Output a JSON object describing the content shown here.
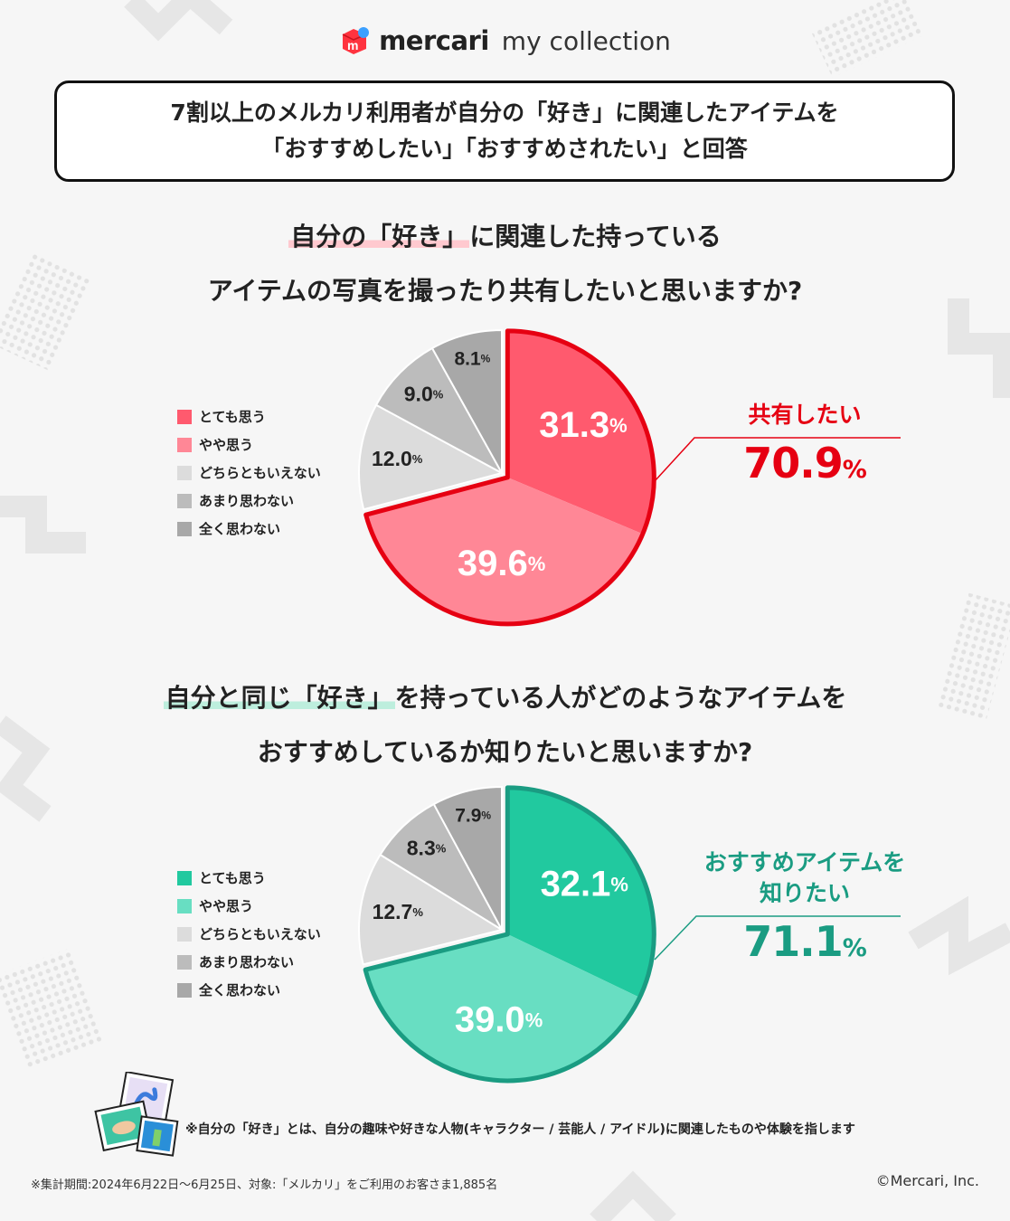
{
  "brand": {
    "name": "mercari",
    "sub": "my collection"
  },
  "title": {
    "line1": "7割以上のメルカリ利用者が自分の「好き」に関連したアイテムを",
    "line2": "「おすすめしたい」「おすすめされたい」と回答"
  },
  "colors": {
    "red_outline": "#e60012",
    "red_dark": "#ff5a6e",
    "red_light": "#ff8796",
    "teal_outline": "#1a9c82",
    "teal_dark": "#21c99f",
    "teal_light": "#68dec2",
    "gray1": "#dcdcdc",
    "gray2": "#bcbcbc",
    "gray3": "#a8a8a8"
  },
  "question1": {
    "highlight": "自分の「好き」",
    "line1_rest": "に関連した持っている",
    "line2": "アイテムの写真を撮ったり共有したいと思いますか?"
  },
  "question2": {
    "highlight": "自分と同じ「好き」",
    "line1_rest": "を持っている人がどのようなアイテムを",
    "line2": "おすすめしているか知りたいと思いますか?"
  },
  "callout1": {
    "label_lines": [
      "共有したい"
    ],
    "value": "70.9",
    "unit": "%"
  },
  "callout2": {
    "label_lines": [
      "おすすめアイテムを",
      "知りたい"
    ],
    "value": "71.1",
    "unit": "%"
  },
  "chart_data": [
    {
      "type": "pie",
      "categories": [
        "とても思う",
        "やや思う",
        "どちらともいえない",
        "あまり思わない",
        "全く思わない"
      ],
      "values": [
        31.3,
        39.6,
        12.0,
        9.0,
        8.1
      ],
      "labels": [
        "31.3",
        "39.6",
        "12.0",
        "9.0",
        "8.1"
      ],
      "unit": "%",
      "legend": "left",
      "colors": [
        "#ff5a6e",
        "#ff8796",
        "#dcdcdc",
        "#bcbcbc",
        "#a8a8a8"
      ]
    },
    {
      "type": "pie",
      "categories": [
        "とても思う",
        "やや思う",
        "どちらともいえない",
        "あまり思わない",
        "全く思わない"
      ],
      "values": [
        32.1,
        39.0,
        12.7,
        8.3,
        7.9
      ],
      "labels": [
        "32.1",
        "39.0",
        "12.7",
        "8.3",
        "7.9"
      ],
      "unit": "%",
      "legend": "left",
      "colors": [
        "#21c99f",
        "#68dec2",
        "#dcdcdc",
        "#bcbcbc",
        "#a8a8a8"
      ]
    }
  ],
  "footnote": "※自分の「好き」とは、自分の趣味や好きな人物(キャラクター / 芸能人 / アイドル)に関連したものや体験を指します",
  "footer": {
    "survey": "※集計期間:2024年6月22日〜6月25日、対象:「メルカリ」をご利用のお客さま1,885名",
    "copyright": "©Mercari, Inc."
  }
}
